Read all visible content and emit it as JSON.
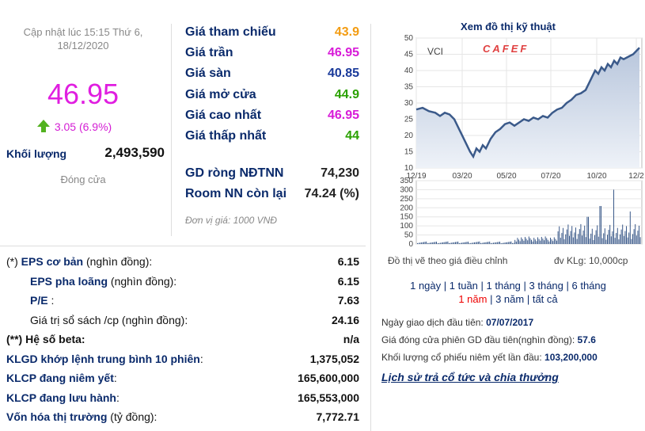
{
  "summary": {
    "updated": "Cập nhật lúc 15:15 Thứ 6, 18/12/2020",
    "price": "46.95",
    "change": "3.05 (6.9%)",
    "volume_label": "Khối lượng",
    "volume_value": "2,493,590",
    "close_label": "Đóng cửa"
  },
  "prices": [
    {
      "label": "Giá tham chiếu",
      "value": "43.9",
      "color": "#f39c12"
    },
    {
      "label": "Giá trần",
      "value": "46.95",
      "color": "#d81bd8"
    },
    {
      "label": "Giá sàn",
      "value": "40.85",
      "color": "#1a3a9a"
    },
    {
      "label": "Giá mở cửa",
      "value": "44.9",
      "color": "#2aa100"
    },
    {
      "label": "Giá cao nhất",
      "value": "46.95",
      "color": "#d81bd8"
    },
    {
      "label": "Giá thấp nhất",
      "value": "44",
      "color": "#2aa100"
    }
  ],
  "foreign": {
    "net_label": "GD ròng NĐTNN",
    "net_value": "74,230",
    "room_label": "Room NN còn lại",
    "room_value": "74.24 (%)"
  },
  "unit_note": "Đơn vị giá: 1000 VNĐ",
  "financials": [
    {
      "prefix": "(*)",
      "bold": "EPS cơ bản",
      "rest": " (nghìn đồng):",
      "value": "6.15"
    },
    {
      "prefix": "",
      "bold": "EPS pha loãng",
      "rest": " (nghìn đồng):",
      "value": "6.15"
    },
    {
      "prefix": "",
      "bold": "P/E",
      "rest": " :",
      "value": "7.63"
    },
    {
      "prefix": "",
      "bold": "",
      "rest": "Giá trị sổ sách /cp (nghìn đồng):",
      "value": "24.16"
    },
    {
      "prefix": "(**)",
      "bold": "",
      "rest": " Hệ số beta:",
      "value": "n/a"
    },
    {
      "prefix": "",
      "bold": "KLGD khớp lệnh trung bình 10 phiên",
      "rest": ":",
      "value": "1,375,052"
    },
    {
      "prefix": "",
      "bold": "KLCP đang niêm yết",
      "rest": ":",
      "value": "165,600,000"
    },
    {
      "prefix": "",
      "bold": "KLCP đang lưu hành",
      "rest": ":",
      "value": "165,553,000"
    },
    {
      "prefix": "",
      "bold": "Vốn hóa thị trường",
      "rest": " (tỷ đồng):",
      "value": "7,772.71"
    }
  ],
  "chart": {
    "title": "Xem đồ thị kỹ thuật",
    "ticker": "VCI",
    "logo": "CAFEF",
    "price_ticks": [
      "50",
      "45",
      "40",
      "35",
      "30",
      "25",
      "20",
      "15",
      "10"
    ],
    "date_ticks": [
      "12/19",
      "03/20",
      "05/20",
      "07/20",
      "10/20",
      "12/2"
    ],
    "vol_ticks": [
      "350",
      "300",
      "250",
      "200",
      "150",
      "100",
      "50",
      "0"
    ],
    "note_left": "Đồ thị vẽ theo giá điều chỉnh",
    "note_right": "đv KLg: 10,000cp",
    "ranges1": [
      "1 ngày",
      "1 tuần",
      "1 tháng",
      "3 tháng",
      "6 tháng"
    ],
    "ranges2": [
      "1 năm",
      "3 năm",
      "tất cả"
    ],
    "selected_range": "1 năm"
  },
  "listing": {
    "first_day_label": "Ngày giao dịch đầu tiên: ",
    "first_day_value": "07/07/2017",
    "first_price_label": "Giá đóng cửa phiên GD đầu tiên(nghìn đồng): ",
    "first_price_value": "57.6",
    "first_vol_label": "Khối lượng cổ phiếu niêm yết lần đầu: ",
    "first_vol_value": "103,200,000",
    "history_link": "Lịch sử trả cổ tức và chia thưởng"
  },
  "colors": {
    "price": "#e01ee0",
    "navy": "#0a2a6b",
    "up_arrow": "#52b21f",
    "line": "#3b5a8a"
  }
}
